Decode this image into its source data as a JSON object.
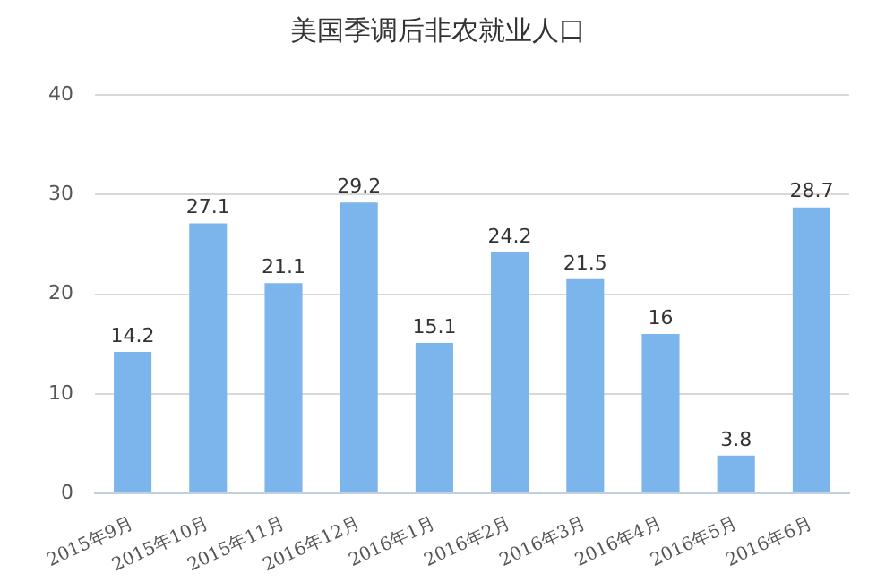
{
  "chart_data": {
    "type": "bar",
    "title": "美国季调后非农就业人口",
    "categories": [
      "2015年9月",
      "2015年10月",
      "2015年11月",
      "2016年12月",
      "2016年1月",
      "2016年2月",
      "2016年3月",
      "2016年4月",
      "2016年5月",
      "2016年6月"
    ],
    "values": [
      14.2,
      27.1,
      21.1,
      29.2,
      15.1,
      24.2,
      21.5,
      16,
      3.8,
      28.7
    ],
    "color": "#7cb5ec",
    "ylim": [
      0,
      40
    ],
    "yticks": [
      0,
      10,
      20,
      30,
      40
    ],
    "grid": "y",
    "data_labels": true
  }
}
